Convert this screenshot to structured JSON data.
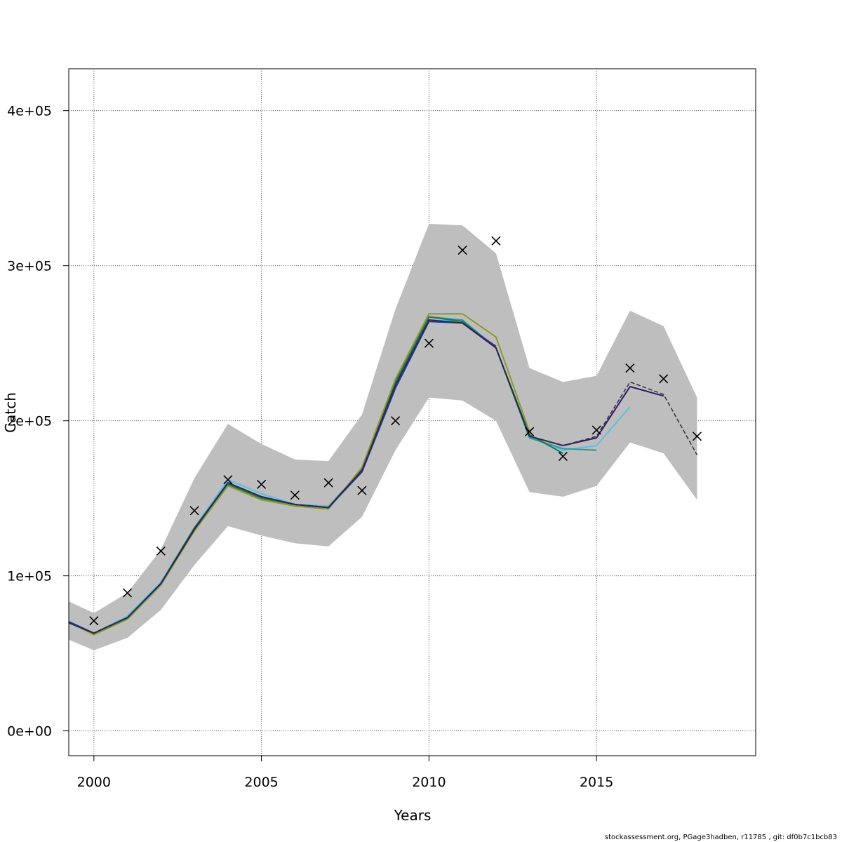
{
  "chart_data": {
    "type": "line",
    "xlabel": "Years",
    "ylabel": "Catch",
    "xlim": [
      1999.25,
      2019.75
    ],
    "ylim": [
      -16000,
      427000
    ],
    "x_ticks": [
      2000,
      2005,
      2010,
      2015
    ],
    "y_ticks": [
      {
        "value": 0,
        "label": "0e+00"
      },
      {
        "value": 100000,
        "label": "1e+05"
      },
      {
        "value": 200000,
        "label": "2e+05"
      },
      {
        "value": 300000,
        "label": "3e+05"
      },
      {
        "value": 400000,
        "label": "4e+05"
      }
    ],
    "grid": true,
    "confidence_band": {
      "color": "#bebebe",
      "x": [
        1999,
        2000,
        2001,
        2002,
        2003,
        2004,
        2005,
        2006,
        2007,
        2008,
        2009,
        2010,
        2011,
        2012,
        2013,
        2014,
        2015,
        2016,
        2017,
        2018
      ],
      "upper": [
        86000,
        76000,
        89000,
        117000,
        163000,
        198000,
        185000,
        175000,
        174000,
        204000,
        272000,
        327000,
        326000,
        308000,
        234000,
        225000,
        229000,
        271000,
        261000,
        215000
      ],
      "lower": [
        61000,
        52000,
        60000,
        78000,
        107000,
        132000,
        126000,
        121000,
        119000,
        138000,
        181000,
        215000,
        213000,
        200000,
        154000,
        151000,
        158000,
        186000,
        179000,
        149000
      ]
    },
    "observed": {
      "marker": "x",
      "x": [
        2000,
        2001,
        2002,
        2003,
        2004,
        2005,
        2006,
        2007,
        2008,
        2009,
        2010,
        2011,
        2012,
        2013,
        2014,
        2015,
        2016,
        2017,
        2018
      ],
      "y": [
        71000,
        89000,
        116000,
        142000,
        162000,
        159000,
        152000,
        160000,
        155000,
        200000,
        250000,
        310000,
        316000,
        193000,
        177000,
        194000,
        234000,
        227000,
        190000
      ]
    },
    "series": [
      {
        "color": "#5bc0de",
        "x": [
          1999,
          2000,
          2001,
          2002,
          2003,
          2004,
          2005,
          2006,
          2007,
          2008,
          2009,
          2010,
          2011,
          2012,
          2013,
          2014,
          2015,
          2016
        ],
        "y": [
          72000,
          63000,
          74000,
          96000,
          131000,
          162000,
          153000,
          146000,
          145000,
          168000,
          223000,
          265000,
          264000,
          247000,
          189000,
          181000,
          184000,
          209000
        ]
      },
      {
        "color": "#2a9d9d",
        "x": [
          1999,
          2000,
          2001,
          2002,
          2003,
          2004,
          2005,
          2006,
          2007,
          2008,
          2009,
          2010,
          2011,
          2012,
          2013,
          2014,
          2015
        ],
        "y": [
          72000,
          63000,
          73000,
          95000,
          131000,
          160000,
          151000,
          146000,
          144000,
          169000,
          225000,
          267000,
          265000,
          247000,
          189000,
          182000,
          181000
        ]
      },
      {
        "color": "#1b7a4a",
        "x": [
          1999,
          2000,
          2001,
          2002,
          2003,
          2004,
          2005,
          2006,
          2007,
          2008,
          2009,
          2010,
          2011,
          2012,
          2013,
          2014
        ],
        "y": [
          72000,
          63000,
          73000,
          95000,
          131000,
          159000,
          150000,
          146000,
          144000,
          169000,
          225000,
          267000,
          264000,
          247000,
          191000,
          179000
        ]
      },
      {
        "color": "#8c9a2a",
        "x": [
          1999,
          2000,
          2001,
          2002,
          2003,
          2004,
          2005,
          2006,
          2007,
          2008,
          2009,
          2010,
          2011,
          2012,
          2013
        ],
        "y": [
          73000,
          62000,
          72000,
          94000,
          129000,
          158000,
          149000,
          145000,
          143000,
          170000,
          227000,
          269000,
          269000,
          254000,
          193000
        ]
      },
      {
        "color": "#1f3fa0",
        "x": [
          1999,
          2000,
          2001,
          2002,
          2003,
          2004,
          2005,
          2006,
          2007,
          2008,
          2009,
          2010,
          2011,
          2012
        ],
        "y": [
          73000,
          63000,
          73000,
          95000,
          130000,
          160000,
          151000,
          146000,
          144000,
          167000,
          221000,
          264000,
          263000,
          248000
        ]
      },
      {
        "color": "#2e1a6e",
        "x": [
          1999,
          2000,
          2001,
          2002,
          2003,
          2004,
          2005,
          2006,
          2007,
          2008,
          2009,
          2010,
          2011,
          2012,
          2013,
          2014,
          2015,
          2016,
          2017
        ],
        "y": [
          72000,
          63000,
          73000,
          95000,
          130000,
          160000,
          151000,
          146000,
          144000,
          168000,
          223000,
          265000,
          263000,
          247000,
          190000,
          184000,
          189000,
          222000,
          216000
        ]
      },
      {
        "color": "#333333",
        "dashed": true,
        "x": [
          1999,
          2000,
          2001,
          2002,
          2003,
          2004,
          2005,
          2006,
          2007,
          2008,
          2009,
          2010,
          2011,
          2012,
          2013,
          2014,
          2015,
          2016,
          2017,
          2018
        ],
        "y": [
          72000,
          63000,
          73000,
          95000,
          130000,
          160000,
          151000,
          146000,
          144000,
          168000,
          223000,
          265000,
          263000,
          247000,
          190000,
          184000,
          190000,
          225000,
          217000,
          178000
        ]
      }
    ]
  },
  "footer_text": "stockassessment.org, PGage3hadben, r11785 , git: df0b7c1bcb83"
}
